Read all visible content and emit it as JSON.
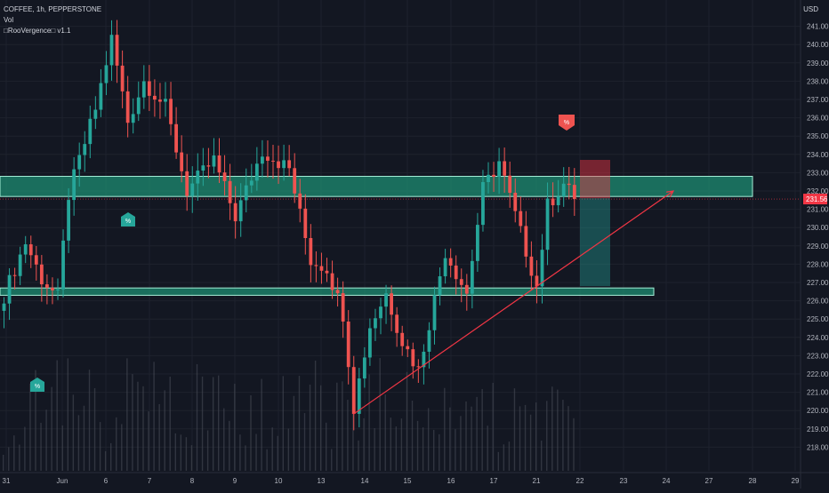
{
  "header": {
    "symbol_line": "COFFEE, 1h, PEPPERSTONE",
    "volume_label": "Vol",
    "indicator_label": "□RooVergence□ v1.1",
    "currency": "USD"
  },
  "colors": {
    "background": "#131722",
    "bull": "#26a69a",
    "bear": "#ef5350",
    "zone_fill": "#1e8c72",
    "zone_stroke": "#a5f0d8",
    "trendline": "#f23645",
    "last_price_bg": "#f23645",
    "risk_box": "#f23645",
    "reward_box": "#26a69a",
    "volume": "#4a4e5a",
    "grid": "#1e222d",
    "axis_text": "#b2b5be"
  },
  "price_axis": {
    "labels": [
      "241.00",
      "240.00",
      "239.00",
      "238.00",
      "237.00",
      "236.00",
      "235.00",
      "234.00",
      "233.00",
      "232.00",
      "231.00",
      "230.00",
      "229.00",
      "228.00",
      "227.00",
      "226.00",
      "225.00",
      "224.00",
      "223.00",
      "222.00",
      "221.00",
      "220.00",
      "219.00",
      "218.00"
    ],
    "last_price": "231.56"
  },
  "time_axis": {
    "labels": [
      "31",
      "Jun",
      "6",
      "7",
      "8",
      "9",
      "10",
      "13",
      "14",
      "15",
      "16",
      "17",
      "21",
      "22",
      "23",
      "24",
      "27",
      "28",
      "29"
    ]
  },
  "markers": [
    {
      "label": "%",
      "kind": "buy"
    },
    {
      "label": "%",
      "kind": "buy"
    },
    {
      "label": "%",
      "kind": "sell"
    }
  ],
  "chart_data": {
    "type": "candlestick",
    "title": "COFFEE, 1h, PEPPERSTONE",
    "ylabel": "USD",
    "ylim": [
      217.6,
      242.0
    ],
    "x_tick_labels": [
      "31",
      "Jun",
      "6",
      "7",
      "8",
      "9",
      "10",
      "13",
      "14",
      "15",
      "16",
      "17",
      "21",
      "22",
      "23",
      "24",
      "27",
      "28",
      "29"
    ],
    "y_tick_labels": [
      "218.00",
      "219.00",
      "220.00",
      "221.00",
      "222.00",
      "223.00",
      "224.00",
      "225.00",
      "226.00",
      "227.00",
      "228.00",
      "229.00",
      "230.00",
      "231.00",
      "232.00",
      "233.00",
      "234.00",
      "235.00",
      "236.00",
      "237.00",
      "238.00",
      "239.00",
      "240.00",
      "241.00"
    ],
    "last_price": 231.56,
    "candle_count": 107,
    "ohlc_keypoints": [
      {
        "bar": 0,
        "close": 226.3
      },
      {
        "bar": 4,
        "close": 229.2
      },
      {
        "bar": 7,
        "close": 227.2
      },
      {
        "bar": 10,
        "close": 226.2
      },
      {
        "bar": 12,
        "close": 231.8
      },
      {
        "bar": 17,
        "close": 236.5
      },
      {
        "bar": 20,
        "close": 240.3
      },
      {
        "bar": 23,
        "close": 235.8
      },
      {
        "bar": 26,
        "close": 238.0
      },
      {
        "bar": 30,
        "close": 236.6
      },
      {
        "bar": 34,
        "close": 232.0
      },
      {
        "bar": 39,
        "close": 233.7
      },
      {
        "bar": 43,
        "close": 230.6
      },
      {
        "bar": 48,
        "close": 234.2
      },
      {
        "bar": 53,
        "close": 233.2
      },
      {
        "bar": 57,
        "close": 228.2
      },
      {
        "bar": 60,
        "close": 227.8
      },
      {
        "bar": 63,
        "close": 225.3
      },
      {
        "bar": 65,
        "close": 220.2
      },
      {
        "bar": 68,
        "close": 224.6
      },
      {
        "bar": 71,
        "close": 226.4
      },
      {
        "bar": 74,
        "close": 223.8
      },
      {
        "bar": 77,
        "close": 222.2
      },
      {
        "bar": 82,
        "close": 228.7
      },
      {
        "bar": 86,
        "close": 226.4
      },
      {
        "bar": 89,
        "close": 232.1
      },
      {
        "bar": 92,
        "close": 233.6
      },
      {
        "bar": 96,
        "close": 229.7
      },
      {
        "bar": 99,
        "close": 226.8
      },
      {
        "bar": 101,
        "close": 231.2
      },
      {
        "bar": 104,
        "close": 232.4
      },
      {
        "bar": 106,
        "close": 231.56
      }
    ],
    "zones": [
      {
        "name": "resistance",
        "low": 231.7,
        "high": 232.8
      },
      {
        "name": "support",
        "low": 226.3,
        "high": 226.7
      }
    ],
    "trendline": {
      "from": {
        "bar": 65,
        "price": 219.8
      },
      "to_date": "24",
      "to_price": 232.0
    },
    "position": {
      "entry": 231.6,
      "stop": 233.7,
      "target": 226.8
    },
    "grid": true,
    "legend": "none"
  }
}
